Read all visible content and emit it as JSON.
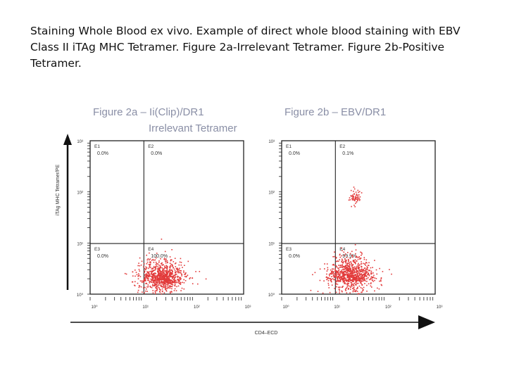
{
  "caption": "Staining Whole Blood ex vivo. Example of direct whole blood staining with EBV Class II iTAg MHC Tetramer. Figure 2a-Irrelevant Tetramer. Figure 2b-Positive Tetramer.",
  "colors": {
    "dots": "#e23a3a",
    "frame": "#222222",
    "title": "#8a8fa6"
  },
  "chart_data": [
    {
      "type": "scatter",
      "title": "Figure 2a – Ii(Clip)/DR1",
      "subtitle": "Irrelevant Tetramer",
      "xlabel": "CD4–ECD",
      "ylabel": "iTAg MHC Tetramer/PE",
      "x_scale": "log",
      "y_scale": "log",
      "xlim": [
        1,
        1000
      ],
      "ylim": [
        1,
        1000
      ],
      "x_ticks": [
        "10⁰",
        "10¹",
        "10²",
        "10³"
      ],
      "y_ticks": [
        "10³",
        "10²",
        "10¹",
        "10⁰"
      ],
      "quadrants": [
        {
          "name": "E1",
          "value": "0.0%"
        },
        {
          "name": "E2",
          "value": "0.0%"
        },
        {
          "name": "E3",
          "value": "0.0%"
        },
        {
          "name": "E4",
          "value": "100.0%"
        }
      ],
      "populations": [
        {
          "x_center": 25,
          "y_center": 1.7,
          "x_spread": 0.22,
          "y_spread": 0.2,
          "count": 900
        }
      ]
    },
    {
      "type": "scatter",
      "title": "Figure 2b – EBV/DR1",
      "subtitle": "",
      "xlabel": "CD4–ECD",
      "ylabel": "",
      "x_scale": "log",
      "y_scale": "log",
      "xlim": [
        1,
        1000
      ],
      "ylim": [
        1,
        1000
      ],
      "x_ticks": [
        "10⁰",
        "10¹",
        "10²",
        "10³"
      ],
      "y_ticks": [
        "10³",
        "10²",
        "10¹",
        "10⁰"
      ],
      "quadrants": [
        {
          "name": "E1",
          "value": "0.0%"
        },
        {
          "name": "E2",
          "value": "0.1%"
        },
        {
          "name": "E3",
          "value": "0.0%"
        },
        {
          "name": "E4",
          "value": "99.9%"
        }
      ],
      "populations": [
        {
          "x_center": 22,
          "y_center": 1.8,
          "x_spread": 0.22,
          "y_spread": 0.22,
          "count": 900
        },
        {
          "x_center": 26,
          "y_center": 70,
          "x_spread": 0.06,
          "y_spread": 0.1,
          "count": 60
        }
      ]
    }
  ]
}
